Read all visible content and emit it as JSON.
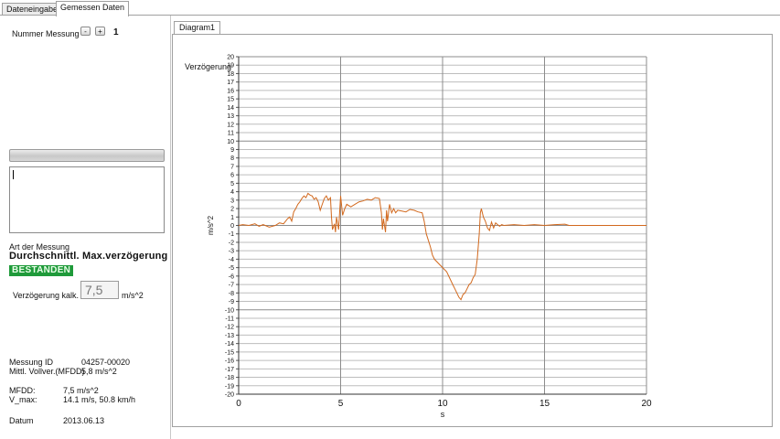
{
  "tabs": [
    {
      "label": "Dateneingabe",
      "active": false
    },
    {
      "label": "Gemessen Daten",
      "active": true
    }
  ],
  "left": {
    "nummer_label": "Nummer Messung",
    "minus_label": "-",
    "plus_label": "+",
    "nummer_value": "1",
    "art_label": "Art der Messung",
    "art_value": "Durchschnittl. Max.verzögerung",
    "status": "BESTANDEN",
    "status_color": "#1f9a3a",
    "verz_label": "Verzögerung kalk.",
    "verz_value": "7,5",
    "verz_unit": "m/s^2",
    "messung_id_label": "Messung ID",
    "messung_id_value": "04257-00020",
    "mittl_label": "Mittl. Vollver.(MFDD)",
    "mittl_value": "5,8 m/s^2",
    "mfdd_label": "MFDD:",
    "mfdd_value": "7,5 m/s^2",
    "vmax_label": "V_max:",
    "vmax_value": "14.1 m/s, 50.8 km/h",
    "datum_label": "Datum",
    "datum_value": "2013.06.13"
  },
  "diagram": {
    "tab_label": "Diagram1"
  },
  "chart_data": {
    "type": "line",
    "title": "",
    "series_label": "Verzögerung",
    "xlabel": "s",
    "ylabel": "m/s^2",
    "xlim": [
      0,
      20
    ],
    "ylim": [
      -20,
      20
    ],
    "x_ticks": [
      0,
      5,
      10,
      15,
      20
    ],
    "y_ticks": [
      20,
      19,
      18,
      17,
      16,
      15,
      14,
      13,
      12,
      11,
      10,
      9,
      8,
      7,
      6,
      5,
      4,
      3,
      2,
      1,
      0,
      -1,
      -2,
      -3,
      -4,
      -5,
      -6,
      -7,
      -8,
      -9,
      -10,
      -11,
      -12,
      -13,
      -14,
      -15,
      -16,
      -17,
      -18,
      -19,
      -20
    ],
    "grid": true,
    "line_color": "#d2691e",
    "x": [
      0,
      0.2,
      0.5,
      0.8,
      1.0,
      1.2,
      1.5,
      1.8,
      2.0,
      2.2,
      2.4,
      2.5,
      2.6,
      2.7,
      2.8,
      2.9,
      3.0,
      3.1,
      3.2,
      3.3,
      3.4,
      3.5,
      3.6,
      3.7,
      3.8,
      3.9,
      4.0,
      4.1,
      4.2,
      4.3,
      4.4,
      4.5,
      4.55,
      4.6,
      4.7,
      4.75,
      4.8,
      4.9,
      5.0,
      5.1,
      5.2,
      5.3,
      5.5,
      5.7,
      5.9,
      6.1,
      6.3,
      6.5,
      6.7,
      6.9,
      7.0,
      7.05,
      7.1,
      7.2,
      7.25,
      7.3,
      7.4,
      7.5,
      7.6,
      7.7,
      7.8,
      8.0,
      8.2,
      8.4,
      8.6,
      8.8,
      9.0,
      9.1,
      9.2,
      9.4,
      9.5,
      9.6,
      9.8,
      10.0,
      10.2,
      10.4,
      10.5,
      10.6,
      10.7,
      10.8,
      10.9,
      11.0,
      11.1,
      11.2,
      11.3,
      11.4,
      11.5,
      11.6,
      11.7,
      11.8,
      11.85,
      11.9,
      12.0,
      12.1,
      12.2,
      12.3,
      12.4,
      12.5,
      12.6,
      12.7,
      12.8,
      12.9,
      13.0,
      13.5,
      14.0,
      14.5,
      15.0,
      15.5,
      16.0,
      16.2,
      17,
      18,
      19,
      20
    ],
    "y": [
      0,
      0.1,
      0,
      0.2,
      -0.1,
      0.1,
      -0.2,
      0,
      0.3,
      0.2,
      0.8,
      1.0,
      0.5,
      1.6,
      2.0,
      2.5,
      2.8,
      3.2,
      3.5,
      3.3,
      3.8,
      3.6,
      3.5,
      3.1,
      3.3,
      2.8,
      1.8,
      2.5,
      3.2,
      3.5,
      3.0,
      3.3,
      1.0,
      -0.5,
      0.2,
      -0.8,
      1.0,
      -0.5,
      3.5,
      1.2,
      2.0,
      2.5,
      2.2,
      2.5,
      2.8,
      2.9,
      3.1,
      3.0,
      3.3,
      3.2,
      1.5,
      -0.5,
      0.8,
      -0.8,
      1.8,
      0.5,
      2.5,
      1.5,
      2.0,
      1.5,
      1.8,
      1.7,
      1.6,
      1.9,
      1.8,
      1.6,
      1.5,
      0.5,
      -1.0,
      -2.5,
      -3.5,
      -4.0,
      -4.5,
      -5.0,
      -5.5,
      -6.5,
      -7.0,
      -7.5,
      -8.0,
      -8.5,
      -8.8,
      -8.2,
      -8.0,
      -7.5,
      -7.0,
      -6.8,
      -6.2,
      -5.8,
      -4.0,
      -1.0,
      1.5,
      2.0,
      1.0,
      0.5,
      -0.3,
      -0.6,
      0.4,
      -0.3,
      0.3,
      0.1,
      -0.1,
      0.1,
      0,
      0.1,
      0,
      0.1,
      0,
      0.1,
      0.15,
      0,
      0,
      0,
      0,
      0
    ]
  }
}
